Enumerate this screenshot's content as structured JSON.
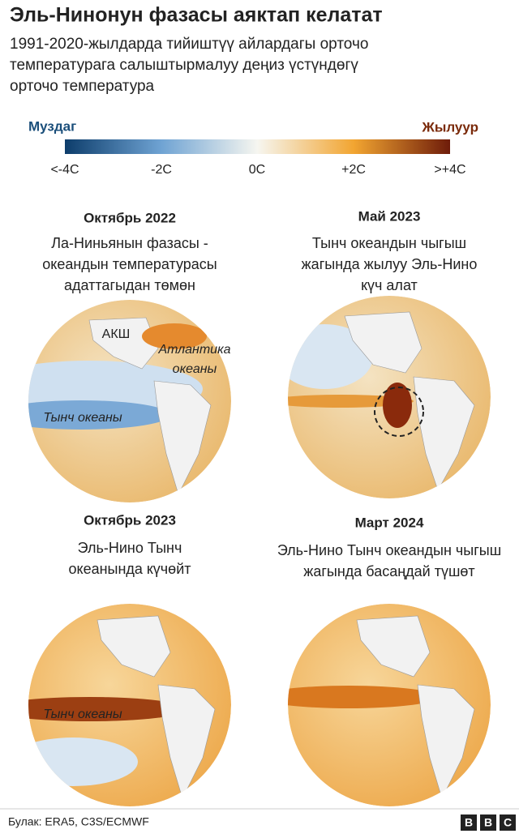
{
  "header": {
    "title": "Эль-Нинонун фазасы аяктап келатат",
    "subtitle": [
      "1991-2020-жылдарда тийиштүү айлардагы орточо",
      "температурага салыштырмалуу деңиз үстүндөгү",
      "орточо температура"
    ]
  },
  "legend": {
    "cold": "Муздаг",
    "warm": "Жылуур",
    "ticks": [
      "<-4C",
      "-2C",
      "0C",
      "+2C",
      ">+4C"
    ]
  },
  "panels": [
    {
      "date": "Октябрь 2022",
      "caption": [
        "Ла-Ниньянын фазасы -",
        "океандын температурасы",
        "адаттагыдан төмөн"
      ],
      "labels": [
        "АКШ",
        "Атлантика",
        "океаны",
        "Тынч океаны"
      ]
    },
    {
      "date": "Май 2023",
      "caption": [
        "Тынч океандын чыгыш",
        "жагында жылуу Эль-Нино",
        "күч алат"
      ],
      "labels": []
    },
    {
      "date": "Октябрь 2023",
      "caption": [
        "Эль-Нино Тынч",
        "океанында күчөйт"
      ],
      "labels": [
        "Тынч океаны"
      ]
    },
    {
      "date": "Март 2024",
      "caption": [
        "Эль-Нино Тынч океандын чыгыш",
        "жагында басаңдай түшөт"
      ],
      "labels": []
    }
  ],
  "footer": {
    "source": "Булак: ERA5, C3S/ECMWF",
    "logo": [
      "B",
      "B",
      "C"
    ]
  }
}
